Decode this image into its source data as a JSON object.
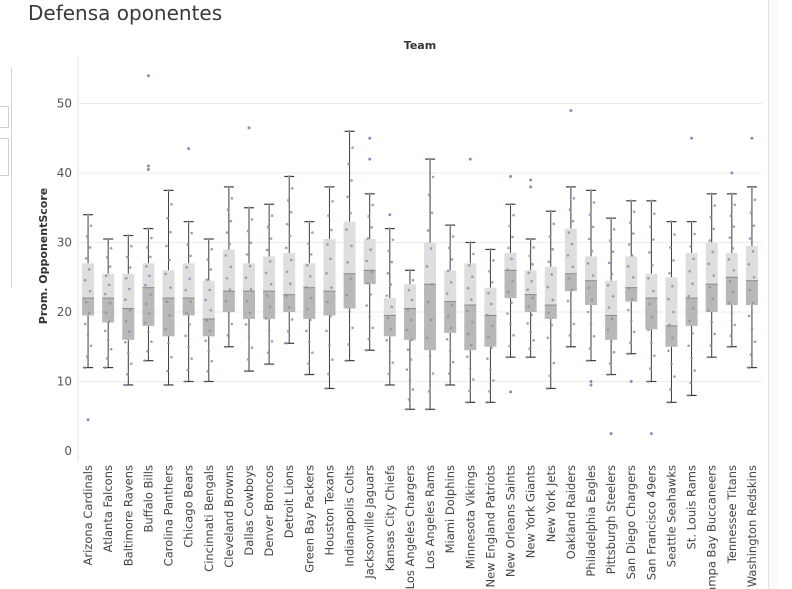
{
  "sheet": {
    "title": "Defensa oponentes"
  },
  "colors": {
    "box_upper": "#dedede",
    "box_lower": "#b8b8b8",
    "whisker": "#3c3c3c",
    "dot": "#7f93bd",
    "grid": "#ececec"
  },
  "chart_data": {
    "type": "box",
    "title": "",
    "column_header": "Team",
    "xlabel": "",
    "ylabel": "Prom. OpponentScore",
    "ylim": [
      0,
      55
    ],
    "yticks": [
      0,
      10,
      20,
      30,
      40,
      50
    ],
    "grid": "horizontal",
    "categories": [
      "Arizona Cardinals",
      "Atlanta Falcons",
      "Baltimore Ravens",
      "Buffalo Bills",
      "Carolina Panthers",
      "Chicago Bears",
      "Cincinnati Bengals",
      "Cleveland Browns",
      "Dallas Cowboys",
      "Denver Broncos",
      "Detroit Lions",
      "Green Bay Packers",
      "Houston Texans",
      "Indianapolis Colts",
      "Jacksonville Jaguars",
      "Kansas City Chiefs",
      "Los Angeles Chargers",
      "Los Angeles Rams",
      "Miami Dolphins",
      "Minnesota Vikings",
      "New England Patriots",
      "New Orleans Saints",
      "New York Giants",
      "New York Jets",
      "Oakland Raiders",
      "Philadelphia Eagles",
      "Pittsburgh Steelers",
      "San Diego Chargers",
      "San Francisco 49ers",
      "Seattle Seahawks",
      "St. Louis Rams",
      "Tampa Bay Buccaneers",
      "Tennessee Titans",
      "Washington Redskins"
    ],
    "boxes": [
      {
        "min": 12,
        "q1": 19.5,
        "median": 22,
        "q3": 27,
        "max": 34,
        "outliers": [
          4.5
        ]
      },
      {
        "min": 12,
        "q1": 18.5,
        "median": 22,
        "q3": 25.5,
        "max": 30.5,
        "outliers": []
      },
      {
        "min": 9.5,
        "q1": 16,
        "median": 20.5,
        "q3": 25.5,
        "max": 31,
        "outliers": []
      },
      {
        "min": 13,
        "q1": 18,
        "median": 23.5,
        "q3": 27,
        "max": 32,
        "outliers": [
          41,
          40.5,
          54
        ]
      },
      {
        "min": 9.5,
        "q1": 16.5,
        "median": 22,
        "q3": 26,
        "max": 37.5,
        "outliers": []
      },
      {
        "min": 10,
        "q1": 19.5,
        "median": 22,
        "q3": 27,
        "max": 33,
        "outliers": [
          43.5
        ]
      },
      {
        "min": 10,
        "q1": 16.5,
        "median": 19,
        "q3": 24.5,
        "max": 30.5,
        "outliers": []
      },
      {
        "min": 15,
        "q1": 20,
        "median": 23,
        "q3": 29,
        "max": 38,
        "outliers": []
      },
      {
        "min": 11.5,
        "q1": 19,
        "median": 23,
        "q3": 27,
        "max": 35,
        "outliers": [
          46.5
        ]
      },
      {
        "min": 12.5,
        "q1": 19,
        "median": 23,
        "q3": 28,
        "max": 35.5,
        "outliers": []
      },
      {
        "min": 15.5,
        "q1": 20,
        "median": 22.5,
        "q3": 28.5,
        "max": 39.5,
        "outliers": []
      },
      {
        "min": 11,
        "q1": 19,
        "median": 23.5,
        "q3": 27,
        "max": 33,
        "outliers": []
      },
      {
        "min": 9,
        "q1": 19.5,
        "median": 23,
        "q3": 30.5,
        "max": 38,
        "outliers": []
      },
      {
        "min": 13,
        "q1": 20.5,
        "median": 25.5,
        "q3": 33,
        "max": 46,
        "outliers": []
      },
      {
        "min": 14.5,
        "q1": 24,
        "median": 26,
        "q3": 30.5,
        "max": 37,
        "outliers": [
          42,
          45
        ]
      },
      {
        "min": 9.5,
        "q1": 16.5,
        "median": 19.5,
        "q3": 22,
        "max": 32,
        "outliers": [
          34
        ]
      },
      {
        "min": 6,
        "q1": 16,
        "median": 20.5,
        "q3": 24,
        "max": 26,
        "outliers": []
      },
      {
        "min": 6,
        "q1": 14.5,
        "median": 24,
        "q3": 30,
        "max": 42,
        "outliers": []
      },
      {
        "min": 9.5,
        "q1": 17,
        "median": 21.5,
        "q3": 26,
        "max": 32.5,
        "outliers": []
      },
      {
        "min": 7,
        "q1": 14.5,
        "median": 21,
        "q3": 27,
        "max": 30,
        "outliers": [
          42
        ]
      },
      {
        "min": 7,
        "q1": 15,
        "median": 19.5,
        "q3": 23.5,
        "max": 29,
        "outliers": []
      },
      {
        "min": 13.5,
        "q1": 22,
        "median": 26,
        "q3": 28.5,
        "max": 35.5,
        "outliers": [
          8.5,
          39.5
        ]
      },
      {
        "min": 13.5,
        "q1": 20,
        "median": 22.5,
        "q3": 26,
        "max": 30.5,
        "outliers": [
          38,
          39
        ]
      },
      {
        "min": 9,
        "q1": 19,
        "median": 21,
        "q3": 26.5,
        "max": 34.5,
        "outliers": []
      },
      {
        "min": 15,
        "q1": 23,
        "median": 25.5,
        "q3": 32,
        "max": 38,
        "outliers": [
          49
        ]
      },
      {
        "min": 13,
        "q1": 21,
        "median": 24.5,
        "q3": 28,
        "max": 37.5,
        "outliers": [
          9.5,
          10
        ]
      },
      {
        "min": 11,
        "q1": 16,
        "median": 19.5,
        "q3": 24.5,
        "max": 33.5,
        "outliers": [
          2.5
        ]
      },
      {
        "min": 14,
        "q1": 21.5,
        "median": 23.5,
        "q3": 28,
        "max": 36,
        "outliers": [
          10
        ]
      },
      {
        "min": 10,
        "q1": 17.5,
        "median": 22,
        "q3": 25.5,
        "max": 36,
        "outliers": [
          2.5
        ]
      },
      {
        "min": 7,
        "q1": 15,
        "median": 18,
        "q3": 25,
        "max": 33,
        "outliers": []
      },
      {
        "min": 8,
        "q1": 18,
        "median": 22,
        "q3": 28.5,
        "max": 33,
        "outliers": [
          45
        ]
      },
      {
        "min": 13.5,
        "q1": 20,
        "median": 24,
        "q3": 30,
        "max": 37,
        "outliers": []
      },
      {
        "min": 15,
        "q1": 21,
        "median": 25,
        "q3": 28.5,
        "max": 37,
        "outliers": [
          40
        ]
      },
      {
        "min": 12,
        "q1": 21,
        "median": 24.5,
        "q3": 29.5,
        "max": 38,
        "outliers": [
          45
        ]
      }
    ]
  }
}
